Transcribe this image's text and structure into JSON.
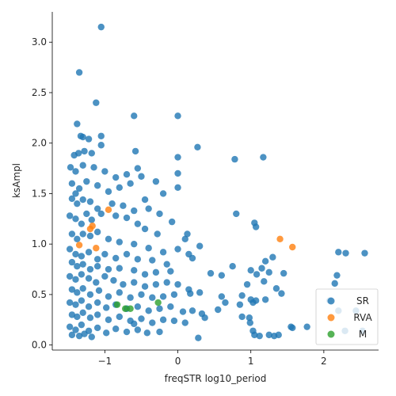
{
  "chart_data": {
    "type": "scatter",
    "xlabel": "freqSTR log10_period",
    "ylabel": "ksAmpl",
    "xlim": [
      -1.72,
      2.75
    ],
    "ylim": [
      -0.05,
      3.3
    ],
    "xticks": [
      -1,
      0,
      1,
      2
    ],
    "xtick_labels": [
      "−1",
      "0",
      "1",
      "2"
    ],
    "yticks": [
      0.0,
      0.5,
      1.0,
      1.5,
      2.0,
      2.5,
      3.0
    ],
    "ytick_labels": [
      "0.0",
      "0.5",
      "1.0",
      "1.5",
      "2.0",
      "2.5",
      "3.0"
    ],
    "legend_position": "lower-right",
    "grid": false,
    "series": [
      {
        "name": "SR",
        "color": "#1f77b4",
        "points": [
          [
            -1.05,
            3.15
          ],
          [
            -1.35,
            2.7
          ],
          [
            -1.12,
            2.4
          ],
          [
            -1.38,
            2.19
          ],
          [
            -0.6,
            2.27
          ],
          [
            0.0,
            2.27
          ],
          [
            -1.33,
            2.07
          ],
          [
            -1.3,
            2.06
          ],
          [
            -1.05,
            2.07
          ],
          [
            -1.22,
            2.04
          ],
          [
            -1.42,
            1.88
          ],
          [
            -1.36,
            1.9
          ],
          [
            -1.28,
            1.92
          ],
          [
            -1.18,
            1.9
          ],
          [
            -1.05,
            1.98
          ],
          [
            -0.58,
            1.92
          ],
          [
            0.27,
            1.96
          ],
          [
            0.78,
            1.84
          ],
          [
            1.17,
            1.86
          ],
          [
            0.0,
            1.86
          ],
          [
            -1.47,
            1.76
          ],
          [
            -1.4,
            1.72
          ],
          [
            -1.3,
            1.78
          ],
          [
            -1.15,
            1.76
          ],
          [
            -1.0,
            1.72
          ],
          [
            -0.85,
            1.66
          ],
          [
            -0.7,
            1.69
          ],
          [
            -0.55,
            1.75
          ],
          [
            -0.5,
            1.67
          ],
          [
            -0.3,
            1.62
          ],
          [
            0.0,
            1.7
          ],
          [
            0.0,
            1.56
          ],
          [
            -0.2,
            1.5
          ],
          [
            -0.45,
            1.44
          ],
          [
            -0.8,
            1.56
          ],
          [
            -0.65,
            1.6
          ],
          [
            -1.45,
            1.6
          ],
          [
            -1.4,
            1.5
          ],
          [
            -1.35,
            1.55
          ],
          [
            -1.25,
            1.62
          ],
          [
            -1.1,
            1.58
          ],
          [
            -0.95,
            1.52
          ],
          [
            -1.45,
            1.45
          ],
          [
            -1.38,
            1.4
          ],
          [
            -1.3,
            1.44
          ],
          [
            -1.2,
            1.42
          ],
          [
            -1.1,
            1.35
          ],
          [
            -0.9,
            1.4
          ],
          [
            -0.75,
            1.38
          ],
          [
            -0.6,
            1.33
          ],
          [
            -0.4,
            1.35
          ],
          [
            -0.25,
            1.3
          ],
          [
            -0.08,
            1.22
          ],
          [
            0.8,
            1.3
          ],
          [
            1.05,
            1.21
          ],
          [
            1.07,
            1.17
          ],
          [
            -1.48,
            1.28
          ],
          [
            -1.4,
            1.25
          ],
          [
            -1.32,
            1.2
          ],
          [
            -1.25,
            1.3
          ],
          [
            -1.18,
            1.24
          ],
          [
            -1.05,
            1.3
          ],
          [
            -0.85,
            1.28
          ],
          [
            -0.7,
            1.26
          ],
          [
            -0.55,
            1.2
          ],
          [
            -0.45,
            1.15
          ],
          [
            -0.28,
            1.1
          ],
          [
            0.13,
            1.1
          ],
          [
            0.1,
            1.05
          ],
          [
            0.3,
            0.98
          ],
          [
            -1.45,
            1.1
          ],
          [
            -1.38,
            1.05
          ],
          [
            -1.3,
            1.1
          ],
          [
            -1.2,
            1.08
          ],
          [
            -1.1,
            1.12
          ],
          [
            -0.95,
            1.05
          ],
          [
            -0.8,
            1.02
          ],
          [
            -0.6,
            1.0
          ],
          [
            -0.4,
            0.96
          ],
          [
            -0.2,
            0.92
          ],
          [
            0.0,
            0.95
          ],
          [
            0.15,
            0.9
          ],
          [
            -1.48,
            0.95
          ],
          [
            -1.4,
            0.9
          ],
          [
            -1.32,
            0.88
          ],
          [
            -1.22,
            0.92
          ],
          [
            -1.1,
            0.85
          ],
          [
            -1.0,
            0.9
          ],
          [
            -0.85,
            0.86
          ],
          [
            -0.7,
            0.9
          ],
          [
            -0.55,
            0.85
          ],
          [
            -0.35,
            0.84
          ],
          [
            -0.15,
            0.8
          ],
          [
            0.2,
            0.86
          ],
          [
            1.3,
            0.87
          ],
          [
            1.2,
            0.83
          ],
          [
            2.2,
            0.92
          ],
          [
            2.3,
            0.91
          ],
          [
            2.56,
            0.91
          ],
          [
            -1.45,
            0.82
          ],
          [
            -1.38,
            0.78
          ],
          [
            -1.3,
            0.8
          ],
          [
            -1.2,
            0.75
          ],
          [
            -1.1,
            0.78
          ],
          [
            -0.95,
            0.75
          ],
          [
            -0.8,
            0.76
          ],
          [
            -0.6,
            0.74
          ],
          [
            -0.45,
            0.7
          ],
          [
            -0.3,
            0.72
          ],
          [
            -0.1,
            0.73
          ],
          [
            0.45,
            0.71
          ],
          [
            0.75,
            0.78
          ],
          [
            1.0,
            0.74
          ],
          [
            1.08,
            0.7
          ],
          [
            1.15,
            0.76
          ],
          [
            1.25,
            0.72
          ],
          [
            1.45,
            0.71
          ],
          [
            2.18,
            0.69
          ],
          [
            -1.48,
            0.68
          ],
          [
            -1.4,
            0.65
          ],
          [
            -1.32,
            0.7
          ],
          [
            -1.22,
            0.66
          ],
          [
            -1.12,
            0.62
          ],
          [
            -1.0,
            0.68
          ],
          [
            -0.88,
            0.64
          ],
          [
            -0.75,
            0.6
          ],
          [
            -0.6,
            0.62
          ],
          [
            -0.45,
            0.58
          ],
          [
            -0.3,
            0.6
          ],
          [
            -0.15,
            0.62
          ],
          [
            0.0,
            0.6
          ],
          [
            0.15,
            0.55
          ],
          [
            0.3,
            0.52
          ],
          [
            0.6,
            0.69
          ],
          [
            0.95,
            0.6
          ],
          [
            1.18,
            0.63
          ],
          [
            1.35,
            0.56
          ],
          [
            1.42,
            0.51
          ],
          [
            2.15,
            0.61
          ],
          [
            -1.45,
            0.55
          ],
          [
            -1.38,
            0.52
          ],
          [
            -1.3,
            0.56
          ],
          [
            -1.2,
            0.5
          ],
          [
            -1.08,
            0.54
          ],
          [
            -0.95,
            0.48
          ],
          [
            -0.8,
            0.52
          ],
          [
            -0.65,
            0.47
          ],
          [
            -0.5,
            0.5
          ],
          [
            -0.35,
            0.47
          ],
          [
            -0.2,
            0.48
          ],
          [
            -0.05,
            0.5
          ],
          [
            0.17,
            0.51
          ],
          [
            0.6,
            0.48
          ],
          [
            0.65,
            0.42
          ],
          [
            0.85,
            0.4
          ],
          [
            0.88,
            0.49
          ],
          [
            1.0,
            0.45
          ],
          [
            1.03,
            0.42
          ],
          [
            1.07,
            0.44
          ],
          [
            1.2,
            0.45
          ],
          [
            -1.48,
            0.42
          ],
          [
            -1.4,
            0.4
          ],
          [
            -1.32,
            0.44
          ],
          [
            -1.22,
            0.38
          ],
          [
            -1.1,
            0.42
          ],
          [
            -0.98,
            0.37
          ],
          [
            -0.85,
            0.4
          ],
          [
            -0.7,
            0.36
          ],
          [
            -0.55,
            0.38
          ],
          [
            -0.4,
            0.34
          ],
          [
            -0.25,
            0.36
          ],
          [
            -0.1,
            0.38
          ],
          [
            0.07,
            0.33
          ],
          [
            0.2,
            0.34
          ],
          [
            0.33,
            0.31
          ],
          [
            0.37,
            0.27
          ],
          [
            0.55,
            0.35
          ],
          [
            0.88,
            0.28
          ],
          [
            0.98,
            0.27
          ],
          [
            0.99,
            0.22
          ],
          [
            2.08,
            0.44
          ],
          [
            2.2,
            0.34
          ],
          [
            2.44,
            0.34
          ],
          [
            -1.45,
            0.3
          ],
          [
            -1.38,
            0.28
          ],
          [
            -1.3,
            0.32
          ],
          [
            -1.2,
            0.27
          ],
          [
            -1.1,
            0.3
          ],
          [
            -0.95,
            0.25
          ],
          [
            -0.8,
            0.28
          ],
          [
            -0.65,
            0.24
          ],
          [
            -0.5,
            0.26
          ],
          [
            -0.35,
            0.22
          ],
          [
            -0.2,
            0.25
          ],
          [
            -0.05,
            0.24
          ],
          [
            0.1,
            0.22
          ],
          [
            0.28,
            0.07
          ],
          [
            1.03,
            0.14
          ],
          [
            1.05,
            0.1
          ],
          [
            1.12,
            0.09
          ],
          [
            1.25,
            0.1
          ],
          [
            1.32,
            0.09
          ],
          [
            1.38,
            0.1
          ],
          [
            1.55,
            0.18
          ],
          [
            1.57,
            0.17
          ],
          [
            1.77,
            0.18
          ],
          [
            2.29,
            0.14
          ],
          [
            2.53,
            0.14
          ],
          [
            -1.48,
            0.18
          ],
          [
            -1.4,
            0.15
          ],
          [
            -1.32,
            0.2
          ],
          [
            -1.22,
            0.14
          ],
          [
            -1.1,
            0.17
          ],
          [
            -0.98,
            0.12
          ],
          [
            -0.85,
            0.16
          ],
          [
            -0.7,
            0.13
          ],
          [
            -0.55,
            0.15
          ],
          [
            -0.42,
            0.12
          ],
          [
            -0.25,
            0.13
          ],
          [
            -1.45,
            0.1
          ],
          [
            -1.35,
            0.09
          ],
          [
            -1.28,
            0.11
          ],
          [
            -1.18,
            0.08
          ],
          [
            -0.6,
            0.21
          ]
        ]
      },
      {
        "name": "RVA",
        "color": "#ff7f0e",
        "points": [
          [
            -1.17,
            1.18
          ],
          [
            -1.2,
            1.15
          ],
          [
            -0.95,
            1.34
          ],
          [
            -1.35,
            0.99
          ],
          [
            -1.12,
            0.96
          ],
          [
            1.4,
            1.05
          ],
          [
            1.57,
            0.97
          ]
        ]
      },
      {
        "name": "M",
        "color": "#2ca02c",
        "points": [
          [
            -0.83,
            0.4
          ],
          [
            -0.72,
            0.36
          ],
          [
            -0.65,
            0.36
          ],
          [
            -0.27,
            0.42
          ]
        ]
      }
    ]
  }
}
